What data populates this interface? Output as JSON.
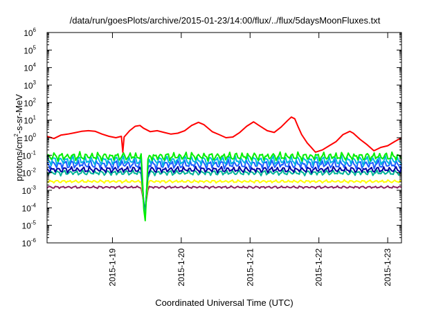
{
  "chart_data": {
    "type": "line",
    "title": "/data/run/goesPlots/archive/2015-01-23/14:00/flux/../flux/5daysMoonFluxes.txt",
    "xlabel": "Coordinated Universal Time (UTC)",
    "ylabel": "protons/cm²-s-sr-MeV",
    "ylabel_parts": [
      "protons/cm",
      "2",
      "-s-sr-MeV"
    ],
    "yscale": "log",
    "ylim": [
      1e-06,
      1000000.0
    ],
    "xlim_days": [
      0,
      5.15
    ],
    "x_tick_labels": [
      "2015-1-19",
      "2015-1-20",
      "2015-1-21",
      "2015-1-22",
      "2015-1-23"
    ],
    "x_tick_days": [
      0.95,
      1.95,
      2.95,
      3.95,
      4.95
    ],
    "y_tick_exponents": [
      -6,
      -5,
      -4,
      -3,
      -2,
      -1,
      0,
      1,
      2,
      3,
      4,
      5,
      6
    ],
    "grid": false,
    "legend": "none",
    "series": [
      {
        "color": "#ff0000",
        "points": [
          [
            0.0,
            1.2
          ],
          [
            0.1,
            0.9
          ],
          [
            0.2,
            1.4
          ],
          [
            0.3,
            1.6
          ],
          [
            0.4,
            1.9
          ],
          [
            0.5,
            2.3
          ],
          [
            0.6,
            2.5
          ],
          [
            0.7,
            2.3
          ],
          [
            0.8,
            1.6
          ],
          [
            0.9,
            1.2
          ],
          [
            1.0,
            1.0
          ],
          [
            1.08,
            1.2
          ],
          [
            1.1,
            0.15
          ],
          [
            1.12,
            1.1
          ],
          [
            1.2,
            2.5
          ],
          [
            1.28,
            4.5
          ],
          [
            1.35,
            5.0
          ],
          [
            1.4,
            3.5
          ],
          [
            1.5,
            2.2
          ],
          [
            1.6,
            2.5
          ],
          [
            1.7,
            2.0
          ],
          [
            1.8,
            1.6
          ],
          [
            1.9,
            1.8
          ],
          [
            2.0,
            2.5
          ],
          [
            2.1,
            5.0
          ],
          [
            2.2,
            7.5
          ],
          [
            2.28,
            5.5
          ],
          [
            2.4,
            2.2
          ],
          [
            2.5,
            1.5
          ],
          [
            2.6,
            1.0
          ],
          [
            2.7,
            1.1
          ],
          [
            2.8,
            2.0
          ],
          [
            2.9,
            4.5
          ],
          [
            3.0,
            8.0
          ],
          [
            3.08,
            5.0
          ],
          [
            3.2,
            2.5
          ],
          [
            3.3,
            2.0
          ],
          [
            3.4,
            4.0
          ],
          [
            3.5,
            10.0
          ],
          [
            3.55,
            15.0
          ],
          [
            3.6,
            12.0
          ],
          [
            3.65,
            4.0
          ],
          [
            3.7,
            1.5
          ],
          [
            3.78,
            0.5
          ],
          [
            3.85,
            0.25
          ],
          [
            3.9,
            0.15
          ],
          [
            4.0,
            0.2
          ],
          [
            4.1,
            0.35
          ],
          [
            4.2,
            0.6
          ],
          [
            4.3,
            1.5
          ],
          [
            4.4,
            2.3
          ],
          [
            4.45,
            1.8
          ],
          [
            4.55,
            0.8
          ],
          [
            4.65,
            0.4
          ],
          [
            4.75,
            0.18
          ],
          [
            4.85,
            0.28
          ],
          [
            4.95,
            0.35
          ],
          [
            5.05,
            0.6
          ],
          [
            5.15,
            1.0
          ]
        ]
      },
      {
        "color": "#00ee00",
        "base": 0.085,
        "spread": 1.9,
        "phase": 0.3
      },
      {
        "color": "#00b4e0",
        "base": 0.05,
        "spread": 2.1,
        "phase": 1.1
      },
      {
        "color": "#1a5aff",
        "base": 0.03,
        "spread": 2.0,
        "phase": 2.0
      },
      {
        "color": "#0000a0",
        "base": 0.015,
        "spread": 1.6,
        "phase": 2.7
      },
      {
        "color": "#00b496",
        "base": 0.01,
        "spread": 1.5,
        "phase": 3.5
      },
      {
        "color": "#ffff00",
        "base": 0.0032,
        "spread": 1.25,
        "phase": 4.2
      },
      {
        "color": "#8b2060",
        "base": 0.0015,
        "spread": 1.2,
        "phase": 5.0
      }
    ],
    "event_dip": {
      "day": 1.42,
      "bottom_values": [
        6e-06,
        1e-05,
        2e-05,
        3e-05,
        4e-05,
        6e-05,
        7e-05,
        0.0001
      ]
    }
  }
}
